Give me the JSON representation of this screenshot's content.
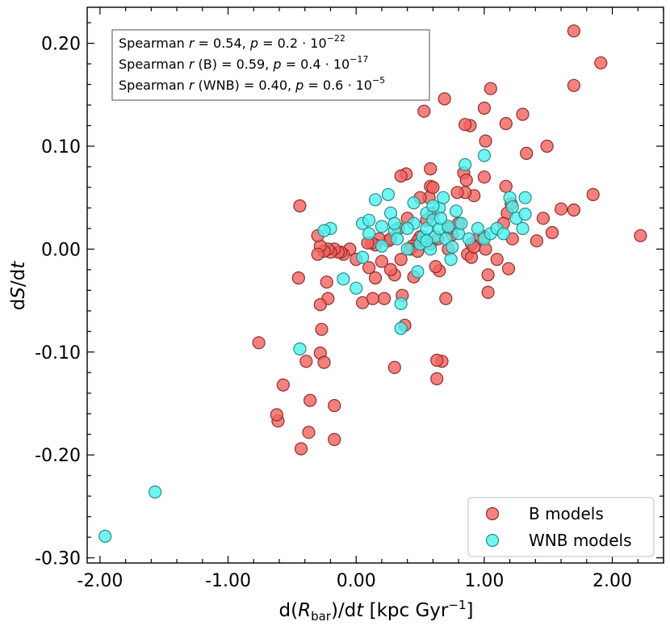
{
  "chart_data": {
    "type": "scatter",
    "xlabel_parts": {
      "prefix": "d(",
      "var": "R",
      "sub": "bar",
      "mid": ")/d",
      "t": "t",
      "unit": " [kpc Gyr",
      "exp": "−1",
      "close": "]"
    },
    "ylabel_parts": {
      "prefix": "d",
      "var": "S",
      "mid": "/d",
      "t": "t"
    },
    "xlim": [
      -2.1,
      2.4
    ],
    "ylim": [
      -0.305,
      0.235
    ],
    "xticks": [
      -2.0,
      -1.0,
      0.0,
      1.0,
      2.0
    ],
    "xtick_labels": [
      "-2.00",
      "-1.00",
      "0.00",
      "1.00",
      "2.00"
    ],
    "yticks": [
      -0.3,
      -0.2,
      -0.1,
      0.0,
      0.1,
      0.2
    ],
    "ytick_labels": [
      "-0.30",
      "-0.20",
      "-0.10",
      "0.00",
      "0.10",
      "0.20"
    ],
    "annotation_lines": [
      {
        "prefix": "Spearman ",
        "r": "r",
        "group": "",
        "eq": " = 0.54, ",
        "p": "p",
        "peq": " = 0.2 · 10",
        "exp": "−22"
      },
      {
        "prefix": "Spearman ",
        "r": "r",
        "group": " (B)",
        "eq": " = 0.59, ",
        "p": "p",
        "peq": " = 0.4 · 10",
        "exp": "−17"
      },
      {
        "prefix": "Spearman ",
        "r": "r",
        "group": " (WNB)",
        "eq": " = 0.40, ",
        "p": "p",
        "peq": " = 0.6 · 10",
        "exp": "−5"
      }
    ],
    "series": [
      {
        "name": "B models",
        "color": "#f2625e",
        "edge": "#8a2e2c",
        "points": [
          [
            2.22,
            0.013
          ],
          [
            1.91,
            0.181
          ],
          [
            1.85,
            0.053
          ],
          [
            1.7,
            0.212
          ],
          [
            1.7,
            0.159
          ],
          [
            1.7,
            0.038
          ],
          [
            1.6,
            0.039
          ],
          [
            1.53,
            0.016
          ],
          [
            1.49,
            0.1
          ],
          [
            1.46,
            0.03
          ],
          [
            1.41,
            0.008
          ],
          [
            1.33,
            0.093
          ],
          [
            1.3,
            0.131
          ],
          [
            1.22,
            0.01
          ],
          [
            1.17,
            0.122
          ],
          [
            1.18,
            0.035
          ],
          [
            1.17,
            0.061
          ],
          [
            1.21,
            0.044
          ],
          [
            1.19,
            -0.019
          ],
          [
            1.15,
            0.025
          ],
          [
            1.05,
            0.156
          ],
          [
            1.0,
            0.137
          ],
          [
            1.01,
            0.105
          ],
          [
            1.0,
            0.07
          ],
          [
            1.03,
            -0.025
          ],
          [
            1.03,
            -0.042
          ],
          [
            1.1,
            -0.01
          ],
          [
            1.01,
            0.0
          ],
          [
            0.95,
            0.01
          ],
          [
            1.0,
            0.012
          ],
          [
            0.92,
            0.052
          ],
          [
            0.89,
            0.12
          ],
          [
            0.85,
            0.121
          ],
          [
            0.84,
            0.074
          ],
          [
            0.86,
            0.067
          ],
          [
            0.85,
            0.055
          ],
          [
            0.9,
            0.005
          ],
          [
            0.87,
            -0.005
          ],
          [
            0.9,
            -0.008
          ],
          [
            0.79,
            0.055
          ],
          [
            0.8,
            0.025
          ],
          [
            0.75,
            0.014
          ],
          [
            0.72,
            0.0
          ],
          [
            0.69,
            0.146
          ],
          [
            0.7,
            -0.048
          ],
          [
            0.67,
            -0.109
          ],
          [
            0.63,
            -0.108
          ],
          [
            0.63,
            -0.126
          ],
          [
            0.65,
            -0.021
          ],
          [
            0.62,
            -0.017
          ],
          [
            0.6,
            0.035
          ],
          [
            0.58,
            0.078
          ],
          [
            0.58,
            0.061
          ],
          [
            0.57,
            0.05
          ],
          [
            0.55,
            0.028
          ],
          [
            0.53,
            0.134
          ],
          [
            0.5,
            0.05
          ],
          [
            0.5,
            0.012
          ],
          [
            0.45,
            -0.027
          ],
          [
            0.48,
            0.008
          ],
          [
            0.44,
            0.003
          ],
          [
            0.42,
            0.0
          ],
          [
            0.4,
            0.03
          ],
          [
            0.39,
            0.073
          ],
          [
            0.35,
            0.071
          ],
          [
            0.36,
            -0.045
          ],
          [
            0.38,
            -0.074
          ],
          [
            0.3,
            -0.115
          ],
          [
            0.33,
            0.02
          ],
          [
            0.3,
            -0.025
          ],
          [
            0.27,
            -0.02
          ],
          [
            0.25,
            0.008
          ],
          [
            0.22,
            -0.048
          ],
          [
            0.2,
            -0.012
          ],
          [
            0.18,
            0.01
          ],
          [
            0.15,
            0.004
          ],
          [
            0.12,
            0.006
          ],
          [
            0.09,
            0.006
          ],
          [
            0.1,
            -0.018
          ],
          [
            0.05,
            -0.052
          ],
          [
            0.0,
            -0.01
          ],
          [
            -0.05,
            0.0
          ],
          [
            -0.1,
            -0.005
          ],
          [
            -0.12,
            -0.003
          ],
          [
            -0.14,
            -0.003
          ],
          [
            -0.17,
            0.0
          ],
          [
            -0.2,
            -0.003
          ],
          [
            -0.22,
            0.0
          ],
          [
            -0.25,
            -0.002
          ],
          [
            -0.28,
            0.003
          ],
          [
            -0.23,
            -0.032
          ],
          [
            -0.22,
            -0.048
          ],
          [
            -0.3,
            -0.005
          ],
          [
            -0.3,
            0.013
          ],
          [
            -0.28,
            -0.054
          ],
          [
            -0.27,
            -0.078
          ],
          [
            -0.28,
            -0.101
          ],
          [
            -0.25,
            -0.11
          ],
          [
            -0.17,
            -0.152
          ],
          [
            -0.17,
            -0.185
          ],
          [
            -0.36,
            -0.147
          ],
          [
            -0.37,
            -0.178
          ],
          [
            -0.39,
            -0.109
          ],
          [
            -0.43,
            -0.194
          ],
          [
            -0.44,
            0.042
          ],
          [
            -0.45,
            -0.028
          ],
          [
            -0.57,
            -0.132
          ],
          [
            -0.61,
            -0.167
          ],
          [
            -0.62,
            -0.161
          ],
          [
            -0.76,
            -0.091
          ],
          [
            0.35,
            -0.01
          ],
          [
            0.72,
            0.02
          ],
          [
            0.58,
            0.005
          ],
          [
            0.13,
            -0.048
          ],
          [
            0.48,
            -0.002
          ],
          [
            0.27,
            0.01
          ],
          [
            0.64,
            0.01
          ],
          [
            0.92,
            0.002
          ],
          [
            0.6,
            0.06
          ],
          [
            0.15,
            -0.028
          ]
        ]
      },
      {
        "name": "WNB models",
        "color": "#4ff2ef",
        "edge": "#2a8a8a",
        "points": [
          [
            -1.96,
            -0.279
          ],
          [
            -1.57,
            -0.236
          ],
          [
            -0.44,
            -0.097
          ],
          [
            -0.1,
            -0.029
          ],
          [
            0.0,
            -0.038
          ],
          [
            0.05,
            0.025
          ],
          [
            0.1,
            0.028
          ],
          [
            0.15,
            0.048
          ],
          [
            0.2,
            0.003
          ],
          [
            0.25,
            0.053
          ],
          [
            0.27,
            0.035
          ],
          [
            0.3,
            0.018
          ],
          [
            0.32,
            0.01
          ],
          [
            0.35,
            -0.053
          ],
          [
            0.35,
            -0.077
          ],
          [
            0.4,
            0.0
          ],
          [
            0.45,
            0.045
          ],
          [
            0.45,
            0.025
          ],
          [
            0.48,
            -0.022
          ],
          [
            0.5,
            0.005
          ],
          [
            0.52,
            0.012
          ],
          [
            0.55,
            0.035
          ],
          [
            0.55,
            0.02
          ],
          [
            0.58,
            0.0
          ],
          [
            0.6,
            0.028
          ],
          [
            0.62,
            0.012
          ],
          [
            0.65,
            0.04
          ],
          [
            0.65,
            0.02
          ],
          [
            0.68,
            0.05
          ],
          [
            0.7,
            0.01
          ],
          [
            0.72,
            0.022
          ],
          [
            0.75,
            0.002
          ],
          [
            0.78,
            0.037
          ],
          [
            0.8,
            0.015
          ],
          [
            0.82,
            0.025
          ],
          [
            0.85,
            0.082
          ],
          [
            0.88,
            0.01
          ],
          [
            0.95,
            0.02
          ],
          [
            1.0,
            0.091
          ],
          [
            1.0,
            0.01
          ],
          [
            1.05,
            0.015
          ],
          [
            1.1,
            0.02
          ],
          [
            1.15,
            0.015
          ],
          [
            1.2,
            0.05
          ],
          [
            1.22,
            0.041
          ],
          [
            1.25,
            0.03
          ],
          [
            1.3,
            0.02
          ],
          [
            1.32,
            0.034
          ],
          [
            1.32,
            0.05
          ],
          [
            0.6,
            0.042
          ],
          [
            0.4,
            0.02
          ],
          [
            0.3,
            0.025
          ],
          [
            0.2,
            0.022
          ],
          [
            0.1,
            0.015
          ],
          [
            0.05,
            -0.008
          ],
          [
            -0.2,
            0.02
          ],
          [
            -0.25,
            0.018
          ],
          [
            0.55,
            0.008
          ],
          [
            0.66,
            0.03
          ],
          [
            0.74,
            -0.01
          ]
        ]
      }
    ]
  }
}
